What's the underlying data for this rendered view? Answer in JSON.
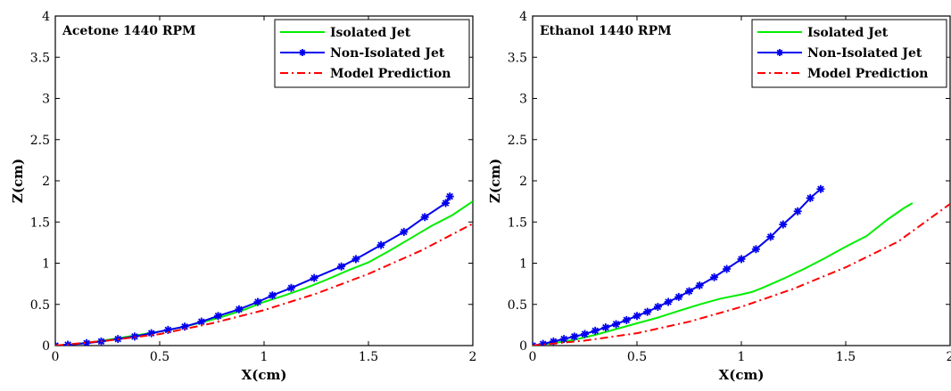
{
  "colors": {
    "isolated": "#00ee00",
    "non_isolated": "#0000ee",
    "model": "#ff0000",
    "axes": "#000000",
    "background": "#ffffff"
  },
  "chart_data": [
    {
      "type": "line",
      "title": "Acetone 1440 RPM",
      "xlabel": "X(cm)",
      "ylabel": "Z(cm)",
      "xlim": [
        0,
        2
      ],
      "ylim": [
        0,
        4
      ],
      "xticks": [
        "0",
        "0.5",
        "1",
        "1.5",
        "2"
      ],
      "yticks": [
        "0",
        "0.5",
        "1",
        "1.5",
        "2",
        "2.5",
        "3",
        "3.5",
        "4"
      ],
      "grid": false,
      "legend_position": "top-right",
      "series": [
        {
          "name": "Isolated Jet",
          "style": "solid",
          "color": "#00ee00",
          "x": [
            0,
            0.1,
            0.2,
            0.3,
            0.4,
            0.5,
            0.6,
            0.7,
            0.8,
            0.9,
            1.0,
            1.1,
            1.2,
            1.3,
            1.4,
            1.5,
            1.6,
            1.7,
            1.8,
            1.9,
            2.0
          ],
          "y": [
            0,
            0.02,
            0.05,
            0.09,
            0.13,
            0.17,
            0.22,
            0.28,
            0.35,
            0.43,
            0.53,
            0.61,
            0.7,
            0.8,
            0.91,
            1.01,
            1.15,
            1.3,
            1.45,
            1.58,
            1.75
          ]
        },
        {
          "name": "Non-Isolated Jet",
          "style": "solid-star",
          "color": "#0000ee",
          "x": [
            0,
            0.06,
            0.15,
            0.22,
            0.3,
            0.38,
            0.46,
            0.54,
            0.62,
            0.7,
            0.78,
            0.88,
            0.97,
            1.04,
            1.13,
            1.24,
            1.37,
            1.44,
            1.56,
            1.67,
            1.77,
            1.87,
            1.89
          ],
          "y": [
            0,
            0.01,
            0.03,
            0.05,
            0.08,
            0.11,
            0.15,
            0.19,
            0.23,
            0.29,
            0.36,
            0.44,
            0.53,
            0.61,
            0.7,
            0.82,
            0.96,
            1.05,
            1.22,
            1.38,
            1.56,
            1.73,
            1.81
          ]
        },
        {
          "name": "Model Prediction",
          "style": "dash-dot",
          "color": "#ff0000",
          "x": [
            0,
            0.25,
            0.5,
            0.75,
            1.0,
            1.25,
            1.5,
            1.75,
            2.0
          ],
          "y": [
            0,
            0.06,
            0.14,
            0.27,
            0.43,
            0.63,
            0.87,
            1.15,
            1.48
          ]
        }
      ]
    },
    {
      "type": "line",
      "title": "Ethanol 1440 RPM",
      "xlabel": "X(cm)",
      "ylabel": "Z(cm)",
      "xlim": [
        0,
        2
      ],
      "ylim": [
        0,
        4
      ],
      "xticks": [
        "0",
        "0.5",
        "1",
        "1.5",
        "2"
      ],
      "yticks": [
        "0",
        "0.5",
        "1",
        "1.5",
        "2",
        "2.5",
        "3",
        "3.5",
        "4"
      ],
      "grid": false,
      "legend_position": "top-right",
      "series": [
        {
          "name": "Isolated Jet",
          "style": "solid",
          "color": "#00ee00",
          "x": [
            0,
            0.1,
            0.2,
            0.3,
            0.4,
            0.5,
            0.6,
            0.7,
            0.8,
            0.9,
            1.0,
            1.05,
            1.1,
            1.2,
            1.3,
            1.4,
            1.5,
            1.6,
            1.7,
            1.78,
            1.82
          ],
          "y": [
            0,
            0.03,
            0.07,
            0.13,
            0.2,
            0.27,
            0.34,
            0.42,
            0.5,
            0.57,
            0.62,
            0.65,
            0.7,
            0.81,
            0.93,
            1.06,
            1.2,
            1.33,
            1.53,
            1.67,
            1.73
          ]
        },
        {
          "name": "Non-Isolated Jet",
          "style": "solid-star",
          "color": "#0000ee",
          "x": [
            0,
            0.05,
            0.1,
            0.15,
            0.2,
            0.25,
            0.3,
            0.35,
            0.4,
            0.45,
            0.5,
            0.55,
            0.6,
            0.65,
            0.7,
            0.75,
            0.8,
            0.87,
            0.93,
            1.0,
            1.07,
            1.14,
            1.2,
            1.27,
            1.33,
            1.38
          ],
          "y": [
            0,
            0.02,
            0.05,
            0.08,
            0.11,
            0.14,
            0.18,
            0.22,
            0.26,
            0.31,
            0.36,
            0.41,
            0.47,
            0.53,
            0.59,
            0.66,
            0.73,
            0.83,
            0.93,
            1.05,
            1.17,
            1.32,
            1.47,
            1.63,
            1.79,
            1.9
          ]
        },
        {
          "name": "Model Prediction",
          "style": "dash-dot",
          "color": "#ff0000",
          "x": [
            0,
            0.25,
            0.5,
            0.75,
            1.0,
            1.25,
            1.5,
            1.75,
            2.0
          ],
          "y": [
            0,
            0.06,
            0.15,
            0.29,
            0.47,
            0.69,
            0.95,
            1.26,
            1.72
          ]
        }
      ]
    }
  ]
}
